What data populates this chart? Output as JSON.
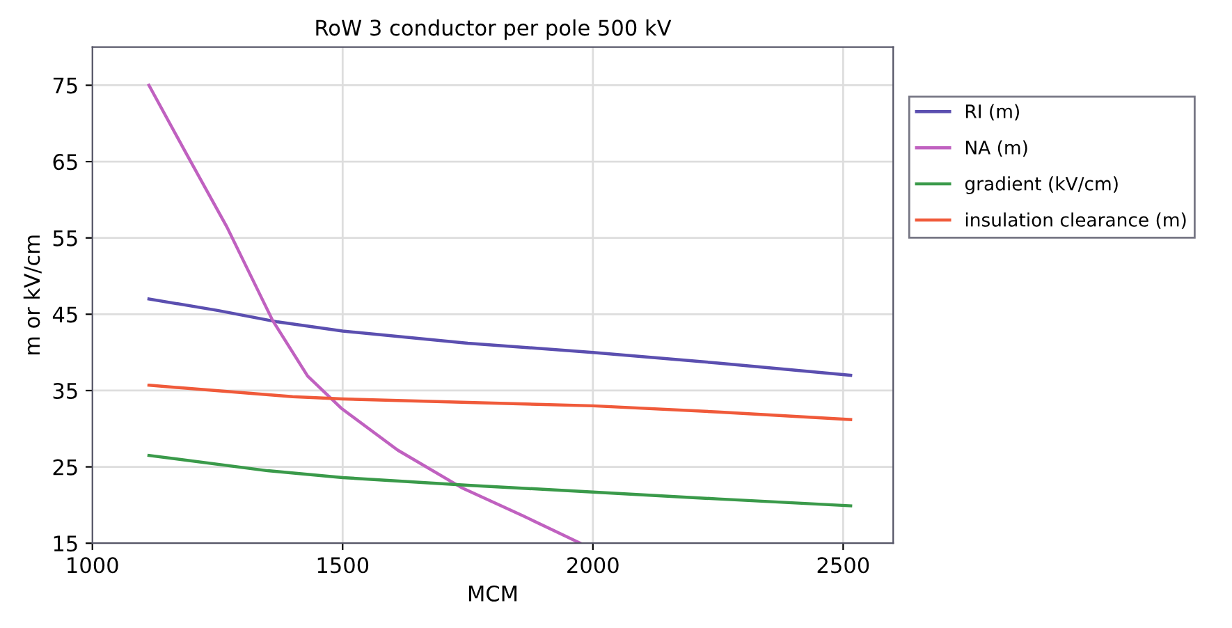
{
  "chart_data": {
    "type": "line",
    "title": "RoW 3 conductor per pole 500 kV",
    "xlabel": "MCM",
    "ylabel": "m or kV/cm",
    "xlim": [
      1000,
      2600
    ],
    "xticks": [
      1000,
      1500,
      2000,
      2500
    ],
    "ylim": [
      15,
      80
    ],
    "yticks": [
      15,
      25,
      35,
      45,
      55,
      65,
      75
    ],
    "grid": true,
    "legend": "right",
    "marker": "none",
    "line_style": "solid",
    "series": [
      {
        "name": "RI (m)",
        "color": "#5b4fb0",
        "x": [
          1113,
          1250,
          1370,
          1500,
          1750,
          2000,
          2250,
          2515
        ],
        "values": [
          47,
          45.5,
          44,
          42.8,
          41.2,
          40,
          38.6,
          37
        ]
      },
      {
        "name": "NA (m)",
        "color": "#c061c0",
        "x": [
          1113,
          1188,
          1269,
          1360,
          1430,
          1497,
          1610,
          1737,
          1860,
          1975
        ],
        "values": [
          75,
          66,
          56.4,
          44.2,
          36.9,
          32.7,
          27.2,
          22.3,
          18.6,
          15
        ]
      },
      {
        "name": "gradient (kV/cm)",
        "color": "#3a9a4a",
        "x": [
          1113,
          1350,
          1500,
          1750,
          2000,
          2250,
          2515
        ],
        "values": [
          26.5,
          24.5,
          23.6,
          22.6,
          21.7,
          20.8,
          19.9
        ]
      },
      {
        "name": "insulation clearance (m)",
        "color": "#f05a3a",
        "x": [
          1113,
          1400,
          1500,
          2000,
          2250,
          2515
        ],
        "values": [
          35.7,
          34.2,
          33.9,
          33,
          32.2,
          31.2
        ]
      }
    ]
  }
}
